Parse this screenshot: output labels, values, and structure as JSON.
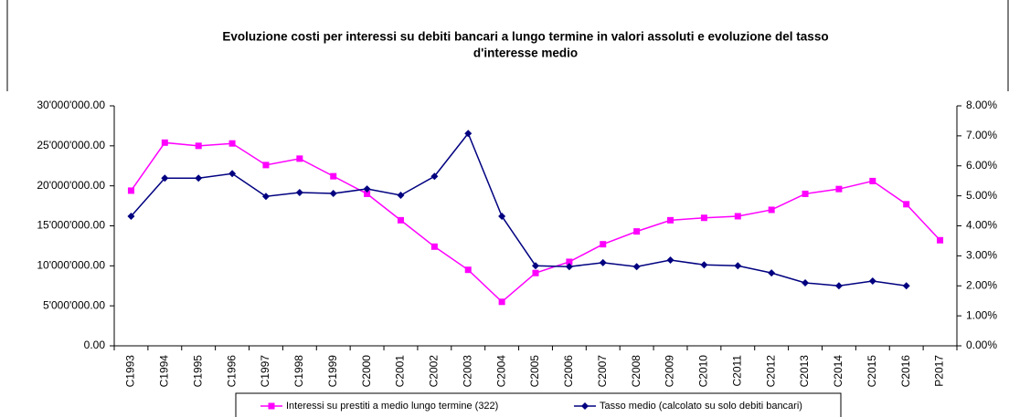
{
  "chart_data": {
    "type": "line",
    "title": [
      "Evoluzione costi per  interessi su debiti bancari  a lungo termine in valori assoluti e evoluzione del tasso",
      "d'interesse medio"
    ],
    "categories": [
      "C1993",
      "C1994",
      "C1995",
      "C1996",
      "C1997",
      "C1998",
      "C1999",
      "C2000",
      "C2001",
      "C2002",
      "C2003",
      "C2004",
      "C2005",
      "C2006",
      "C2007",
      "C2008",
      "C2009",
      "C2010",
      "C2011",
      "C2012",
      "C2013",
      "C2014",
      "C2015",
      "C2016",
      "P2017"
    ],
    "series": [
      {
        "name": "Interessi su prestiti a medio lungo termine (322)",
        "color": "#ff00ff",
        "marker": "square",
        "values": [
          19400000,
          25400000,
          25000000,
          25300000,
          22600000,
          23400000,
          21200000,
          19000000,
          15700000,
          12400000,
          9500000,
          5500000,
          9100000,
          10500000,
          12700000,
          14300000,
          15700000,
          16000000,
          16200000,
          17000000,
          19000000,
          19600000,
          20600000,
          17700000,
          13200000
        ]
      },
      {
        "name": "Tasso medio (calcolato su solo debiti bancari)",
        "color": "#000080",
        "marker": "diamond",
        "axis": "y2",
        "values": [
          4.32,
          5.59,
          5.59,
          5.74,
          4.98,
          5.11,
          5.08,
          5.23,
          5.02,
          5.65,
          7.08,
          4.32,
          2.67,
          2.64,
          2.77,
          2.64,
          2.86,
          2.7,
          2.67,
          2.43,
          2.1,
          2.0,
          2.16,
          2.0,
          null
        ]
      }
    ],
    "ylim": [
      0,
      30000000
    ],
    "yticks": [
      {
        "value": 0,
        "label": "0.00"
      },
      {
        "value": 5000000,
        "label": "5'000'000.00"
      },
      {
        "value": 10000000,
        "label": "10'000'000.00"
      },
      {
        "value": 15000000,
        "label": "15'000'000.00"
      },
      {
        "value": 20000000,
        "label": "20'000'000.00"
      },
      {
        "value": 25000000,
        "label": "25'000'000.00"
      },
      {
        "value": 30000000,
        "label": "30'000'000.00"
      }
    ],
    "y2lim": [
      0,
      8
    ],
    "y2ticks": [
      {
        "value": 0,
        "label": "0.00%"
      },
      {
        "value": 1,
        "label": "1.00%"
      },
      {
        "value": 2,
        "label": "2.00%"
      },
      {
        "value": 3,
        "label": "3.00%"
      },
      {
        "value": 4,
        "label": "4.00%"
      },
      {
        "value": 5,
        "label": "5.00%"
      },
      {
        "value": 6,
        "label": "6.00%"
      },
      {
        "value": 7,
        "label": "7.00%"
      },
      {
        "value": 8,
        "label": "8.00%"
      }
    ],
    "grid": false
  }
}
